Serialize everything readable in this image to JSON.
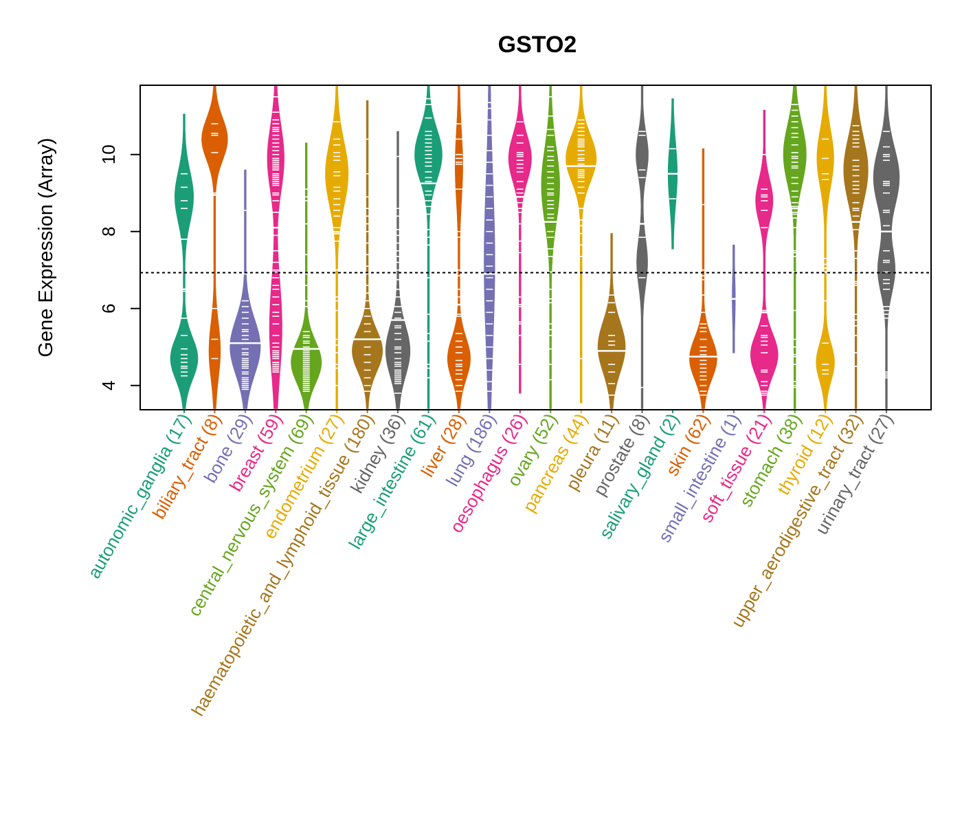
{
  "chart_data": {
    "type": "violin",
    "title": "GSTO2",
    "xlabel": "",
    "ylabel": "Gene Expression (Array)",
    "ylim": [
      3.37,
      11.8
    ],
    "yticks": [
      4,
      6,
      8,
      10
    ],
    "reference_line": {
      "value": 6.93,
      "style": "dotted"
    },
    "grid": false,
    "legend": "none",
    "categories": [
      {
        "name": "autonomic_ganglia",
        "n": 17,
        "color": "#1B9E77",
        "min": 3.4,
        "max": 11.05,
        "median": 6.5,
        "modes": [
          {
            "center": 8.9,
            "width": 0.6,
            "spread": 1.1
          },
          {
            "center": 4.7,
            "width": 0.9,
            "spread": 0.9
          }
        ],
        "points": [
          9.5,
          9.15,
          8.8,
          8.6,
          7.8,
          5.75,
          5.3,
          4.95,
          4.8,
          4.7,
          4.6,
          4.5,
          4.45,
          4.35,
          4.25,
          6.45,
          7.8
        ]
      },
      {
        "name": "biliary_tract",
        "n": 8,
        "color": "#D95F02",
        "min": 3.4,
        "max": 11.8,
        "median": 8.95,
        "modes": [
          {
            "center": 10.4,
            "width": 0.85,
            "spread": 0.9
          },
          {
            "center": 4.9,
            "width": 0.35,
            "spread": 1.2
          }
        ],
        "points": [
          10.8,
          10.55,
          10.5,
          10.05,
          5.2,
          4.7,
          9.0,
          6.0
        ]
      },
      {
        "name": "bone",
        "n": 29,
        "color": "#7570B3",
        "min": 3.4,
        "max": 9.6,
        "median": 5.1,
        "modes": [
          {
            "center": 5.0,
            "width": 1.1,
            "spread": 1.2
          }
        ],
        "points": [
          8.55,
          6.9,
          6.2,
          6.05,
          5.9,
          5.75,
          5.6,
          5.4,
          5.2,
          4.95,
          4.8,
          4.7,
          4.6,
          4.5,
          4.35,
          4.2,
          4.05,
          4.0,
          3.9,
          5.45,
          5.3,
          4.85,
          4.65,
          4.45,
          4.3,
          4.15,
          4.1,
          3.95,
          4.55
        ]
      },
      {
        "name": "breast",
        "n": 59,
        "color": "#E7298A",
        "min": 3.4,
        "max": 11.8,
        "median": 8.1,
        "modes": [
          {
            "center": 9.9,
            "width": 0.55,
            "spread": 1.4
          },
          {
            "center": 5.5,
            "width": 0.4,
            "spread": 2.0
          }
        ],
        "points": [
          11.5,
          11.1,
          10.9,
          10.8,
          10.7,
          10.6,
          10.4,
          10.3,
          10.1,
          10.0,
          9.9,
          9.8,
          9.7,
          9.6,
          9.5,
          9.4,
          9.3,
          9.2,
          9.0,
          8.8,
          8.1,
          7.5,
          7.2,
          7.0,
          6.8,
          6.6,
          6.3,
          6.1,
          5.9,
          5.6,
          5.3,
          5.0,
          4.9,
          4.8,
          4.7,
          4.6,
          4.5,
          4.45,
          4.4,
          9.85,
          9.75,
          9.65,
          9.45,
          9.35,
          9.25,
          10.2,
          10.5,
          10.65,
          8.95,
          8.5,
          7.9,
          6.95,
          6.5,
          5.8,
          5.1,
          4.85,
          4.75,
          4.55,
          4.35
        ]
      },
      {
        "name": "central_nervous_system",
        "n": 69,
        "color": "#66A61E",
        "min": 3.4,
        "max": 10.3,
        "median": 4.95,
        "modes": [
          {
            "center": 4.6,
            "width": 1.2,
            "spread": 0.9
          }
        ],
        "points": [
          9.1,
          8.9,
          8.8,
          8.2,
          7.4,
          6.9,
          6.6,
          6.2,
          6.05,
          5.4,
          5.3,
          5.1,
          5.0,
          4.9,
          4.8,
          4.7,
          4.6,
          4.5,
          4.4,
          4.3,
          4.2,
          4.1,
          4.0,
          3.95,
          3.85,
          5.25,
          5.15,
          4.95,
          4.85,
          4.75,
          4.65,
          4.55,
          4.45,
          4.35,
          4.25,
          4.15,
          4.05,
          3.9
        ]
      },
      {
        "name": "endometrium",
        "n": 27,
        "color": "#E6AB02",
        "min": 3.4,
        "max": 11.8,
        "median": 7.95,
        "modes": [
          {
            "center": 9.5,
            "width": 0.75,
            "spread": 1.4
          }
        ],
        "points": [
          10.85,
          10.4,
          10.25,
          9.95,
          9.85,
          9.55,
          9.45,
          9.15,
          8.85,
          8.7,
          8.55,
          8.4,
          8.0,
          7.75,
          7.0,
          6.2,
          5.95,
          5.2,
          4.85,
          4.55,
          4.0,
          10.05,
          9.05,
          8.1,
          6.3,
          5.05,
          4.45
        ]
      },
      {
        "name": "haematopoietic_and_lymphoid_tissue",
        "n": 180,
        "color": "#A6761D",
        "min": 3.4,
        "max": 11.4,
        "median": 5.2,
        "modes": [
          {
            "center": 4.9,
            "width": 1.05,
            "spread": 0.9
          }
        ],
        "points": [
          10.4,
          9.5,
          8.9,
          8.6,
          8.4,
          8.2,
          8.0,
          7.7,
          7.4,
          7.1,
          6.9,
          6.6,
          6.4,
          6.2,
          6.0,
          5.8,
          5.6,
          5.4,
          5.2,
          5.0,
          4.8,
          4.6,
          4.4,
          4.2,
          4.0,
          3.85
        ]
      },
      {
        "name": "kidney",
        "n": 36,
        "color": "#666666",
        "min": 3.4,
        "max": 10.6,
        "median": 5.7,
        "modes": [
          {
            "center": 4.9,
            "width": 0.8,
            "spread": 1.1
          }
        ],
        "points": [
          9.95,
          8.6,
          8.4,
          7.9,
          7.5,
          7.2,
          6.5,
          6.05,
          5.75,
          5.55,
          5.5,
          5.2,
          5.0,
          4.7,
          4.5,
          4.4,
          4.3,
          4.2,
          4.1,
          3.8,
          7.35,
          7.0,
          6.3,
          5.35,
          4.85,
          4.6,
          4.55,
          4.35,
          4.25,
          4.15,
          8.05,
          7.7,
          6.75,
          5.9,
          4.95,
          4.05
        ]
      },
      {
        "name": "large_intestine",
        "n": 61,
        "color": "#1B9E77",
        "min": 3.4,
        "max": 11.8,
        "median": 9.25,
        "modes": [
          {
            "center": 10.0,
            "width": 0.9,
            "spread": 1.1
          }
        ],
        "points": [
          11.45,
          11.3,
          10.95,
          10.6,
          10.5,
          10.4,
          10.3,
          10.2,
          10.1,
          10.0,
          9.9,
          9.8,
          9.7,
          9.55,
          9.4,
          9.3,
          9.05,
          8.95,
          8.8,
          8.65,
          8.45,
          8.05,
          7.85,
          7.65,
          6.8,
          5.85,
          5.35,
          5.15,
          4.55,
          4.45,
          4.2
        ]
      },
      {
        "name": "liver",
        "n": 28,
        "color": "#D95F02",
        "min": 3.4,
        "max": 11.8,
        "median": 6.1,
        "modes": [
          {
            "center": 4.7,
            "width": 0.75,
            "spread": 0.9
          },
          {
            "center": 9.7,
            "width": 0.22,
            "spread": 1.5
          }
        ],
        "points": [
          10.8,
          10.4,
          10.0,
          9.8,
          9.75,
          9.1,
          8.0,
          7.85,
          6.85,
          6.5,
          6.1,
          5.85,
          5.8,
          5.35,
          5.0,
          4.85,
          4.65,
          4.55,
          4.5,
          4.15,
          4.0,
          3.85,
          4.4,
          4.3,
          5.15,
          9.9,
          7.0,
          6.3
        ]
      },
      {
        "name": "lung",
        "n": 186,
        "color": "#7570B3",
        "min": 3.4,
        "max": 11.8,
        "median": 6.9,
        "modes": [
          {
            "center": 7.2,
            "width": 0.35,
            "spread": 3.5
          }
        ],
        "points": [
          11.35,
          11.2,
          10.9,
          10.5,
          10.1,
          9.8,
          9.5,
          9.2,
          8.9,
          8.6,
          8.3,
          8.0,
          7.7,
          7.4,
          7.1,
          6.8,
          6.5,
          6.2,
          5.9,
          5.6,
          5.3,
          5.0,
          4.7,
          4.4,
          4.1,
          3.85
        ]
      },
      {
        "name": "oesophagus",
        "n": 26,
        "color": "#E7298A",
        "min": 3.8,
        "max": 11.8,
        "median": 8.9,
        "modes": [
          {
            "center": 9.9,
            "width": 0.75,
            "spread": 1.0
          }
        ],
        "points": [
          10.85,
          10.5,
          10.3,
          10.05,
          9.95,
          9.85,
          9.65,
          9.55,
          9.3,
          9.1,
          8.75,
          8.5,
          8.2,
          7.75,
          7.45,
          6.3,
          6.05,
          5.6,
          5.3,
          10.0,
          9.75,
          9.0,
          8.6,
          6.1,
          5.65,
          4.55
        ]
      },
      {
        "name": "ovary",
        "n": 52,
        "color": "#66A61E",
        "min": 3.4,
        "max": 11.8,
        "median": 8.25,
        "modes": [
          {
            "center": 9.2,
            "width": 0.6,
            "spread": 1.6
          }
        ],
        "points": [
          11.5,
          11.0,
          10.5,
          10.2,
          10.1,
          9.85,
          9.7,
          9.55,
          9.4,
          9.25,
          9.1,
          8.95,
          8.8,
          8.6,
          8.45,
          8.25,
          8.0,
          7.55,
          7.35,
          6.95,
          6.5,
          6.15,
          5.6,
          5.3,
          4.55,
          4.15,
          10.65,
          9.95,
          9.0,
          8.7,
          8.35,
          7.85,
          6.25,
          5.45,
          4.95
        ]
      },
      {
        "name": "pancreas",
        "n": 44,
        "color": "#E6AB02",
        "min": 3.55,
        "max": 11.8,
        "median": 9.7,
        "modes": [
          {
            "center": 9.9,
            "width": 1.0,
            "spread": 1.0
          }
        ],
        "points": [
          10.9,
          10.7,
          10.5,
          10.4,
          10.3,
          10.2,
          10.1,
          10.0,
          9.9,
          9.75,
          9.6,
          9.5,
          9.4,
          9.3,
          9.15,
          9.0,
          8.6,
          8.3,
          8.15,
          7.95,
          7.65,
          7.35,
          4.7,
          10.8,
          10.6,
          10.35,
          10.25,
          9.85,
          9.55,
          9.45
        ]
      },
      {
        "name": "pleura",
        "n": 11,
        "color": "#A6761D",
        "min": 3.4,
        "max": 7.95,
        "median": 4.9,
        "modes": [
          {
            "center": 5.0,
            "width": 0.9,
            "spread": 1.1
          }
        ],
        "points": [
          6.35,
          6.15,
          5.9,
          5.3,
          5.15,
          4.9,
          4.55,
          4.35,
          4.05,
          3.75,
          5.05
        ]
      },
      {
        "name": "prostate",
        "n": 8,
        "color": "#666666",
        "min": 3.4,
        "max": 11.8,
        "median": 8.2,
        "modes": [
          {
            "center": 10.0,
            "width": 0.4,
            "spread": 0.9
          },
          {
            "center": 7.2,
            "width": 0.35,
            "spread": 1.0
          }
        ],
        "points": [
          10.6,
          10.5,
          9.6,
          9.4,
          8.2,
          7.85,
          6.8,
          3.95
        ]
      },
      {
        "name": "salivary_gland",
        "n": 2,
        "color": "#1B9E77",
        "min": 7.55,
        "max": 11.45,
        "median": 9.5,
        "modes": [
          {
            "center": 9.5,
            "width": 0.3,
            "spread": 1.3
          }
        ],
        "points": [
          10.15,
          8.85
        ]
      },
      {
        "name": "skin",
        "n": 62,
        "color": "#D95F02",
        "min": 3.4,
        "max": 10.15,
        "median": 4.75,
        "modes": [
          {
            "center": 4.7,
            "width": 0.9,
            "spread": 0.9
          }
        ],
        "points": [
          8.7,
          7.0,
          6.85,
          6.75,
          6.35,
          5.9,
          5.6,
          5.5,
          5.4,
          5.2,
          5.0,
          4.9,
          4.8,
          4.65,
          4.55,
          4.45,
          4.35,
          4.25,
          4.15,
          4.0,
          3.85,
          3.75
        ]
      },
      {
        "name": "small_intestine",
        "n": 1,
        "color": "#7570B3",
        "min": 4.85,
        "max": 7.65,
        "median": 6.25,
        "modes": [
          {
            "center": 6.25,
            "width": 0.1,
            "spread": 1.0
          }
        ],
        "points": [
          6.25
        ]
      },
      {
        "name": "soft_tissue",
        "n": 21,
        "color": "#E7298A",
        "min": 3.4,
        "max": 11.15,
        "median": 5.9,
        "modes": [
          {
            "center": 8.8,
            "width": 0.55,
            "spread": 0.9
          },
          {
            "center": 4.8,
            "width": 0.9,
            "spread": 0.9
          }
        ],
        "points": [
          10.0,
          9.1,
          8.95,
          8.8,
          8.55,
          8.1,
          5.95,
          5.55,
          5.3,
          5.15,
          5.05,
          4.85,
          4.4,
          4.35,
          4.0,
          3.85,
          3.8,
          3.75,
          8.9,
          5.25,
          4.1
        ]
      },
      {
        "name": "stomach",
        "n": 38,
        "color": "#66A61E",
        "min": 3.4,
        "max": 11.8,
        "median": 8.6,
        "modes": [
          {
            "center": 10.0,
            "width": 0.75,
            "spread": 1.3
          }
        ],
        "points": [
          11.3,
          11.15,
          11.0,
          10.85,
          10.7,
          10.55,
          10.45,
          10.25,
          10.05,
          9.95,
          9.8,
          9.65,
          9.4,
          9.25,
          9.05,
          8.9,
          8.75,
          8.6,
          8.5,
          8.35,
          8.1,
          7.5,
          7.35,
          6.95,
          5.95,
          5.0,
          4.75,
          4.55,
          4.1,
          3.95,
          9.9,
          9.7,
          8.65,
          8.45,
          7.45,
          5.2,
          4.8,
          4.0
        ]
      },
      {
        "name": "thyroid",
        "n": 12,
        "color": "#E6AB02",
        "min": 3.4,
        "max": 11.8,
        "median": 6.95,
        "modes": [
          {
            "center": 9.9,
            "width": 0.55,
            "spread": 1.2
          },
          {
            "center": 4.6,
            "width": 0.6,
            "spread": 0.8
          }
        ],
        "points": [
          10.4,
          9.9,
          9.5,
          9.35,
          7.3,
          7.15,
          7.05,
          6.2,
          5.1,
          4.55,
          4.4,
          4.3
        ]
      },
      {
        "name": "upper_aerodigestive_tract",
        "n": 32,
        "color": "#A6761D",
        "min": 3.4,
        "max": 11.8,
        "median": 8.25,
        "modes": [
          {
            "center": 9.6,
            "width": 0.8,
            "spread": 1.4
          }
        ],
        "points": [
          10.75,
          10.6,
          10.5,
          10.4,
          10.2,
          9.85,
          9.7,
          9.6,
          9.45,
          9.3,
          9.2,
          9.0,
          8.75,
          8.6,
          8.55,
          8.4,
          8.25,
          8.05,
          7.5,
          7.3,
          6.95,
          6.7,
          6.6,
          5.85,
          5.55,
          5.3,
          4.85,
          4.5,
          10.3,
          9.1,
          6.65,
          5.7
        ]
      },
      {
        "name": "urinary_tract",
        "n": 27,
        "color": "#666666",
        "min": 3.4,
        "max": 11.8,
        "median": 8.0,
        "modes": [
          {
            "center": 9.4,
            "width": 0.85,
            "spread": 1.3
          },
          {
            "center": 7.0,
            "width": 0.55,
            "spread": 1.0
          }
        ],
        "points": [
          10.6,
          10.2,
          9.95,
          9.85,
          9.3,
          9.2,
          9.0,
          8.5,
          8.15,
          7.5,
          7.2,
          6.95,
          6.65,
          6.5,
          6.05,
          5.85,
          5.75,
          4.3,
          4.25,
          4.2,
          9.25,
          8.55,
          7.25,
          6.75,
          5.95,
          4.35,
          10.0
        ]
      }
    ]
  }
}
